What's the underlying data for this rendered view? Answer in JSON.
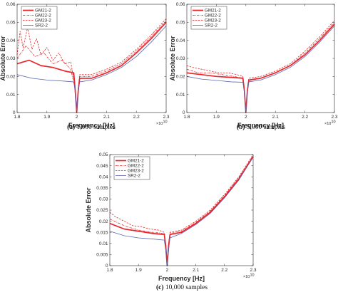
{
  "chart_data": [
    {
      "type": "line",
      "caption_label": "(a)",
      "caption_text": "1,000 samples",
      "xlabel": "Frequency [Hz]",
      "ylabel": "Absolute Error",
      "x_multiplier": "×10",
      "x_multiplier_exp": "10",
      "xlim": [
        1.8,
        2.3
      ],
      "ylim": [
        0,
        0.06
      ],
      "xticks": [
        "1.8",
        "1.9",
        "2",
        "2.1",
        "2.2",
        "2.3"
      ],
      "yticks": [
        "0",
        "0.01",
        "0.02",
        "0.03",
        "0.04",
        "0.05",
        "0.06"
      ],
      "grid": false,
      "legend_position": "top-left",
      "series": [
        {
          "name": "GM21-2",
          "style": "thick",
          "x": [
            1.8,
            1.84,
            1.88,
            1.92,
            1.96,
            1.99,
            1.995,
            2.0,
            2.005,
            2.01,
            2.05,
            2.1,
            2.15,
            2.2,
            2.25,
            2.3
          ],
          "y": [
            0.027,
            0.029,
            0.026,
            0.025,
            0.023,
            0.022,
            0.012,
            0.0,
            0.012,
            0.019,
            0.019,
            0.022,
            0.026,
            0.033,
            0.041,
            0.05
          ]
        },
        {
          "name": "GM22-2",
          "style": "dashdot",
          "x": [
            1.8,
            1.83,
            1.86,
            1.89,
            1.92,
            1.95,
            1.98,
            1.995,
            2.0,
            2.005,
            2.01,
            2.05,
            2.1,
            2.15,
            2.2,
            2.25,
            2.3
          ],
          "y": [
            0.03,
            0.037,
            0.031,
            0.033,
            0.027,
            0.029,
            0.024,
            0.013,
            0.0,
            0.013,
            0.02,
            0.02,
            0.023,
            0.027,
            0.034,
            0.042,
            0.051
          ]
        },
        {
          "name": "GM23-2",
          "style": "dashed",
          "x": [
            1.8,
            1.81,
            1.82,
            1.835,
            1.85,
            1.865,
            1.88,
            1.9,
            1.92,
            1.94,
            1.96,
            1.98,
            1.995,
            2.0,
            2.005,
            2.01,
            2.05,
            2.1,
            2.15,
            2.2,
            2.25,
            2.3
          ],
          "y": [
            0.032,
            0.045,
            0.036,
            0.047,
            0.035,
            0.041,
            0.032,
            0.036,
            0.029,
            0.033,
            0.027,
            0.028,
            0.014,
            0.0,
            0.014,
            0.021,
            0.021,
            0.024,
            0.028,
            0.035,
            0.043,
            0.052
          ]
        },
        {
          "name": "SR2-2",
          "style": "thin",
          "x": [
            1.8,
            1.85,
            1.9,
            1.95,
            1.99,
            1.995,
            2.0,
            2.005,
            2.01,
            2.05,
            2.1,
            2.15,
            2.2,
            2.25,
            2.3
          ],
          "y": [
            0.021,
            0.019,
            0.018,
            0.0175,
            0.017,
            0.012,
            0.0,
            0.012,
            0.017,
            0.018,
            0.021,
            0.025,
            0.031,
            0.039,
            0.048
          ]
        }
      ]
    },
    {
      "type": "line",
      "caption_label": "(b)",
      "caption_text": "5,000 samples",
      "xlabel": "Frequency [Hz]",
      "ylabel": "Absolute Error",
      "x_multiplier": "×10",
      "x_multiplier_exp": "10",
      "xlim": [
        1.8,
        2.3
      ],
      "ylim": [
        0,
        0.06
      ],
      "xticks": [
        "1.8",
        "1.9",
        "2",
        "2.1",
        "2.2",
        "2.3"
      ],
      "yticks": [
        "0",
        "0.01",
        "0.02",
        "0.03",
        "0.04",
        "0.05",
        "0.06"
      ],
      "grid": false,
      "legend_position": "top-left",
      "series": [
        {
          "name": "GM21-2",
          "style": "thick",
          "x": [
            1.8,
            1.85,
            1.9,
            1.95,
            1.99,
            1.995,
            2.0,
            2.005,
            2.01,
            2.05,
            2.1,
            2.15,
            2.2,
            2.25,
            2.3
          ],
          "y": [
            0.022,
            0.021,
            0.02,
            0.0195,
            0.019,
            0.012,
            0.0,
            0.012,
            0.018,
            0.019,
            0.022,
            0.026,
            0.032,
            0.04,
            0.049
          ]
        },
        {
          "name": "GM22-2",
          "style": "dashdot",
          "x": [
            1.8,
            1.84,
            1.88,
            1.92,
            1.96,
            1.99,
            1.995,
            2.0,
            2.005,
            2.01,
            2.05,
            2.1,
            2.15,
            2.2,
            2.25,
            2.3
          ],
          "y": [
            0.024,
            0.022,
            0.022,
            0.021,
            0.02,
            0.019,
            0.012,
            0.0,
            0.012,
            0.018,
            0.019,
            0.022,
            0.026,
            0.033,
            0.041,
            0.05
          ]
        },
        {
          "name": "GM23-2",
          "style": "dashed",
          "x": [
            1.8,
            1.82,
            1.85,
            1.88,
            1.91,
            1.94,
            1.97,
            1.99,
            1.995,
            2.0,
            2.005,
            2.01,
            2.05,
            2.1,
            2.15,
            2.2,
            2.25,
            2.3
          ],
          "y": [
            0.026,
            0.025,
            0.024,
            0.023,
            0.022,
            0.022,
            0.021,
            0.02,
            0.013,
            0.0,
            0.013,
            0.019,
            0.02,
            0.023,
            0.027,
            0.034,
            0.042,
            0.051
          ]
        },
        {
          "name": "SR2-2",
          "style": "thin",
          "x": [
            1.8,
            1.85,
            1.9,
            1.95,
            1.99,
            1.995,
            2.0,
            2.005,
            2.01,
            2.05,
            2.1,
            2.15,
            2.2,
            2.25,
            2.3
          ],
          "y": [
            0.02,
            0.0185,
            0.0178,
            0.017,
            0.0168,
            0.011,
            0.0,
            0.011,
            0.017,
            0.018,
            0.021,
            0.025,
            0.031,
            0.039,
            0.048
          ]
        }
      ]
    },
    {
      "type": "line",
      "caption_label": "(c)",
      "caption_text": "10,000 samples",
      "xlabel": "Frequency [Hz]",
      "ylabel": "Absolute Error",
      "x_multiplier": "×10",
      "x_multiplier_exp": "10",
      "xlim": [
        1.8,
        2.3
      ],
      "ylim": [
        0,
        0.05
      ],
      "xticks": [
        "1.8",
        "1.9",
        "2",
        "2.1",
        "2.2",
        "2.3"
      ],
      "yticks": [
        "0",
        "0.005",
        "0.01",
        "0.015",
        "0.02",
        "0.025",
        "0.03",
        "0.035",
        "0.04",
        "0.045",
        "0.05"
      ],
      "grid": false,
      "legend_position": "top-left",
      "series": [
        {
          "name": "GM21-2",
          "style": "thick",
          "x": [
            1.8,
            1.85,
            1.9,
            1.95,
            1.99,
            1.995,
            2.0,
            2.005,
            2.01,
            2.05,
            2.1,
            2.15,
            2.2,
            2.25,
            2.3
          ],
          "y": [
            0.019,
            0.0165,
            0.0155,
            0.0145,
            0.014,
            0.009,
            0.0,
            0.009,
            0.014,
            0.015,
            0.019,
            0.024,
            0.031,
            0.039,
            0.049
          ]
        },
        {
          "name": "GM22-2",
          "style": "dashdot",
          "x": [
            1.8,
            1.85,
            1.9,
            1.95,
            1.99,
            1.995,
            2.0,
            2.005,
            2.01,
            2.05,
            2.1,
            2.15,
            2.2,
            2.25,
            2.3
          ],
          "y": [
            0.021,
            0.018,
            0.016,
            0.015,
            0.0145,
            0.009,
            0.0,
            0.009,
            0.0145,
            0.0155,
            0.0195,
            0.0245,
            0.0315,
            0.0395,
            0.0495
          ]
        },
        {
          "name": "GM23-2",
          "style": "dashed",
          "x": [
            1.8,
            1.82,
            1.85,
            1.88,
            1.91,
            1.94,
            1.97,
            1.99,
            1.995,
            2.0,
            2.005,
            2.01,
            2.05,
            2.1,
            2.15,
            2.2,
            2.25,
            2.3
          ],
          "y": [
            0.024,
            0.022,
            0.02,
            0.018,
            0.0175,
            0.0165,
            0.016,
            0.015,
            0.01,
            0.0,
            0.01,
            0.015,
            0.016,
            0.02,
            0.025,
            0.032,
            0.04,
            0.05
          ]
        },
        {
          "name": "SR2-2",
          "style": "thin",
          "x": [
            1.8,
            1.85,
            1.9,
            1.95,
            1.99,
            1.995,
            2.0,
            2.005,
            2.01,
            2.05,
            2.1,
            2.15,
            2.2,
            2.25,
            2.3
          ],
          "y": [
            0.0155,
            0.0135,
            0.0125,
            0.012,
            0.0115,
            0.007,
            0.0,
            0.007,
            0.0125,
            0.0145,
            0.0185,
            0.0235,
            0.0305,
            0.0385,
            0.049
          ]
        }
      ]
    }
  ],
  "colors": {
    "gm": "#e8262b",
    "sr": "#5a66b0",
    "axis": "#262626"
  }
}
